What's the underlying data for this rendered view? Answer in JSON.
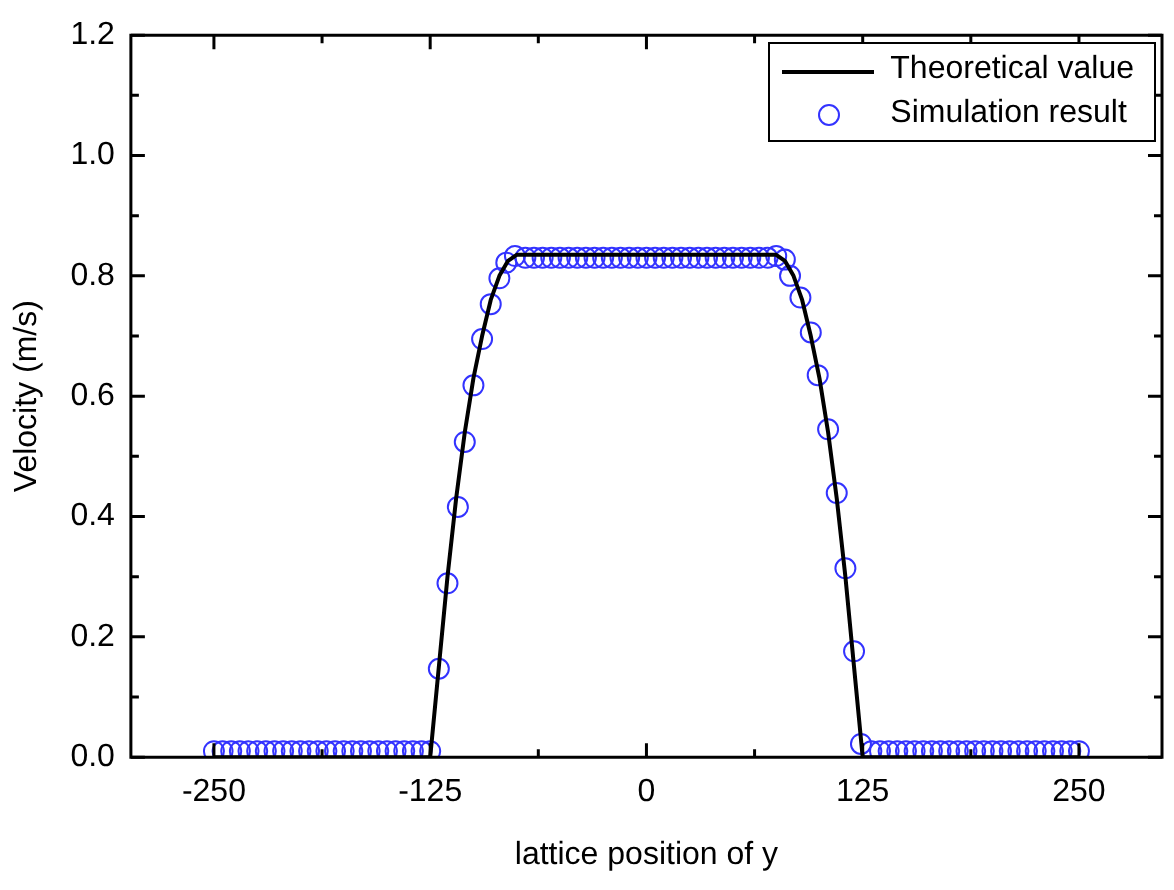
{
  "chart_data": {
    "type": "line",
    "xlabel": "lattice position of y",
    "ylabel": "Velocity (m/s)",
    "xlim": [
      -298,
      298
    ],
    "xticks": [
      -250,
      -125,
      0,
      125,
      250
    ],
    "ylim": [
      0,
      1.2
    ],
    "yticks": [
      {
        "value": 0,
        "label": "0.0"
      },
      {
        "value": 0.2,
        "label": "0.2"
      },
      {
        "value": 0.4,
        "label": "0.4"
      },
      {
        "value": 0.6,
        "label": "0.6"
      },
      {
        "value": 0.8,
        "label": "0.8"
      },
      {
        "value": 1.0,
        "label": "1.0"
      },
      {
        "value": 1.2,
        "label": "1.2"
      }
    ],
    "grid": false,
    "legend": "top right",
    "series": [
      {
        "name": "Theoretical value",
        "color": "#000000",
        "marker": "none",
        "line_style": "solid",
        "x": [
          -250,
          -125,
          -120,
          -115,
          -110,
          -105,
          -100,
          -95,
          -90,
          -85,
          -80,
          -75,
          75,
          80,
          85,
          90,
          95,
          100,
          105,
          110,
          115,
          120,
          125,
          250
        ],
        "values": [
          0,
          0,
          0.15,
          0.3,
          0.43,
          0.54,
          0.63,
          0.7,
          0.76,
          0.8,
          0.825,
          0.835,
          0.835,
          0.825,
          0.8,
          0.76,
          0.7,
          0.63,
          0.54,
          0.43,
          0.3,
          0.15,
          0,
          0
        ]
      },
      {
        "name": "Simulation result",
        "type": "scatter",
        "color": "#3333ff",
        "marker": "circle",
        "x": [
          -250,
          -245,
          -240,
          -235,
          -230,
          -225,
          -220,
          -215,
          -210,
          -205,
          -200,
          -195,
          -190,
          -185,
          -180,
          -175,
          -170,
          -165,
          -160,
          -155,
          -150,
          -145,
          -140,
          -135,
          -130,
          -125,
          -120,
          -115,
          -109,
          -105,
          -100,
          -95,
          -90,
          -85,
          -81,
          -76,
          -70,
          -65,
          -60,
          -55,
          -50,
          -45,
          -40,
          -35,
          -30,
          -25,
          -20,
          -15,
          -10,
          -5,
          0,
          5,
          10,
          15,
          20,
          25,
          30,
          35,
          40,
          45,
          50,
          55,
          60,
          65,
          70,
          75,
          80,
          83,
          89,
          95,
          99,
          105,
          110,
          115,
          120,
          124,
          130,
          135,
          140,
          145,
          150,
          155,
          160,
          165,
          170,
          175,
          180,
          185,
          190,
          195,
          200,
          205,
          210,
          215,
          220,
          225,
          230,
          235,
          240,
          245,
          250
        ],
        "values": [
          0.01,
          0.01,
          0.01,
          0.01,
          0.01,
          0.01,
          0.01,
          0.01,
          0.01,
          0.01,
          0.01,
          0.01,
          0.01,
          0.01,
          0.01,
          0.01,
          0.01,
          0.01,
          0.01,
          0.01,
          0.01,
          0.01,
          0.01,
          0.01,
          0.01,
          0.01,
          0.147,
          0.289,
          0.416,
          0.524,
          0.618,
          0.695,
          0.753,
          0.796,
          0.822,
          0.833,
          0.83,
          0.83,
          0.83,
          0.83,
          0.83,
          0.83,
          0.83,
          0.83,
          0.83,
          0.83,
          0.83,
          0.83,
          0.83,
          0.83,
          0.83,
          0.83,
          0.83,
          0.83,
          0.83,
          0.83,
          0.83,
          0.83,
          0.83,
          0.83,
          0.83,
          0.83,
          0.83,
          0.83,
          0.83,
          0.833,
          0.827,
          0.8,
          0.764,
          0.706,
          0.635,
          0.545,
          0.439,
          0.314,
          0.176,
          0.022,
          0.01,
          0.01,
          0.01,
          0.01,
          0.01,
          0.01,
          0.01,
          0.01,
          0.01,
          0.01,
          0.01,
          0.01,
          0.01,
          0.01,
          0.01,
          0.01,
          0.01,
          0.01,
          0.01,
          0.01,
          0.01,
          0.01,
          0.01,
          0.01,
          0.01
        ]
      }
    ]
  }
}
